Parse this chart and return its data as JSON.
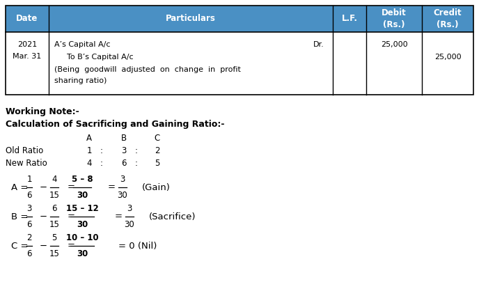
{
  "bg_color": "#ffffff",
  "header_bg": "#4a90c4",
  "header_text_color": "#ffffff",
  "table_cols": [
    "Date",
    "Particulars",
    "L.F.",
    "Debit\n(Rs.)",
    "Credit\n(Rs.)"
  ],
  "row1_date_line1": "2021",
  "row1_date_line2": "Mar. 31",
  "row1_p1": "A’s Capital A/c",
  "row1_p1_dr": "Dr.",
  "row1_p2": "    To B’s Capital A/c",
  "row1_p3": "(Being  goodwill  adjusted  on  change  in  profit",
  "row1_p4": "sharing ratio)",
  "row1_debit": "25,000",
  "row1_credit": "25,000",
  "working_note": "Working Note:-",
  "calc_title": "Calculation of Sacrificing and Gaining Ratio:-",
  "ratio_A": "A",
  "ratio_B": "B",
  "ratio_C": "C",
  "old_ratio": "Old Ratio",
  "old_vals": [
    "1",
    ":",
    "3",
    ":",
    "2"
  ],
  "new_ratio": "New Ratio",
  "new_vals": [
    "4",
    ":",
    "6",
    ":",
    "5"
  ],
  "gain_label": "(Gain)",
  "sacrifice_label": "(Sacrifice)",
  "nil_label": "(Nil)"
}
